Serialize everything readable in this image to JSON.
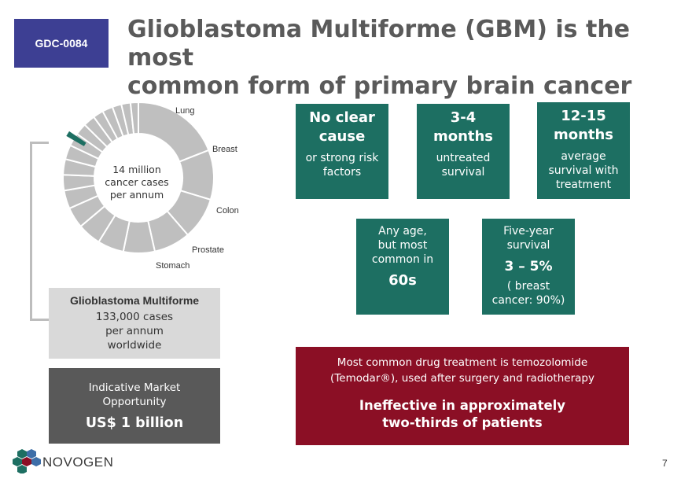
{
  "badge": "GDC-0084",
  "title_line1": "Glioblastoma Multiforme (GBM) is the most",
  "title_line2": "common form of primary brain cancer",
  "donut": {
    "labels": [
      "Lung",
      "Breast",
      "Colon",
      "Prostate",
      "Stomach"
    ],
    "center_line1": "14 million",
    "center_line2": "cancer cases",
    "center_line3": "per annum",
    "colors": {
      "segment": "#bfbfbf",
      "highlight": "#1d6f62"
    }
  },
  "gbm": {
    "heading": "Glioblastoma Multiforme",
    "line1": "133,000 cases",
    "line2": "per annum",
    "line3": "worldwide"
  },
  "market": {
    "line1": "Indicative Market",
    "line2": "Opportunity",
    "value": "US$ 1 billion"
  },
  "facts": {
    "cause_big1": "No clear",
    "cause_big2": "cause",
    "cause_sm1": "or strong risk",
    "cause_sm2": "factors",
    "untreated_big1": "3-4",
    "untreated_big2": "months",
    "untreated_sm1": "untreated",
    "untreated_sm2": "survival",
    "treated_big1": "12-15",
    "treated_big2": "months",
    "treated_sm1": "average",
    "treated_sm2": "survival with",
    "treated_sm3": "treatment",
    "age_sm1": "Any age,",
    "age_sm2": "but most",
    "age_sm3": "common in",
    "age_big": "60s",
    "fiveyr_sm1": "Five-year",
    "fiveyr_sm2": "survival",
    "fiveyr_big": "3 – 5%",
    "fiveyr_sm3": "( breast",
    "fiveyr_sm4": "cancer: 90%)"
  },
  "drug": {
    "line1": "Most common drug treatment is temozolomide",
    "line2": "(Temodar®), used after surgery and radiotherapy",
    "bold1": "Ineffective in approximately",
    "bold2": "two-thirds of patients"
  },
  "logo_text": "NOVOGEN",
  "page_number": "7",
  "colors": {
    "teal": "#1d6f62",
    "crimson": "#8b0f25",
    "navy": "#3d3f93",
    "grey_dark": "#595959",
    "grey_light": "#d9d9d9"
  }
}
